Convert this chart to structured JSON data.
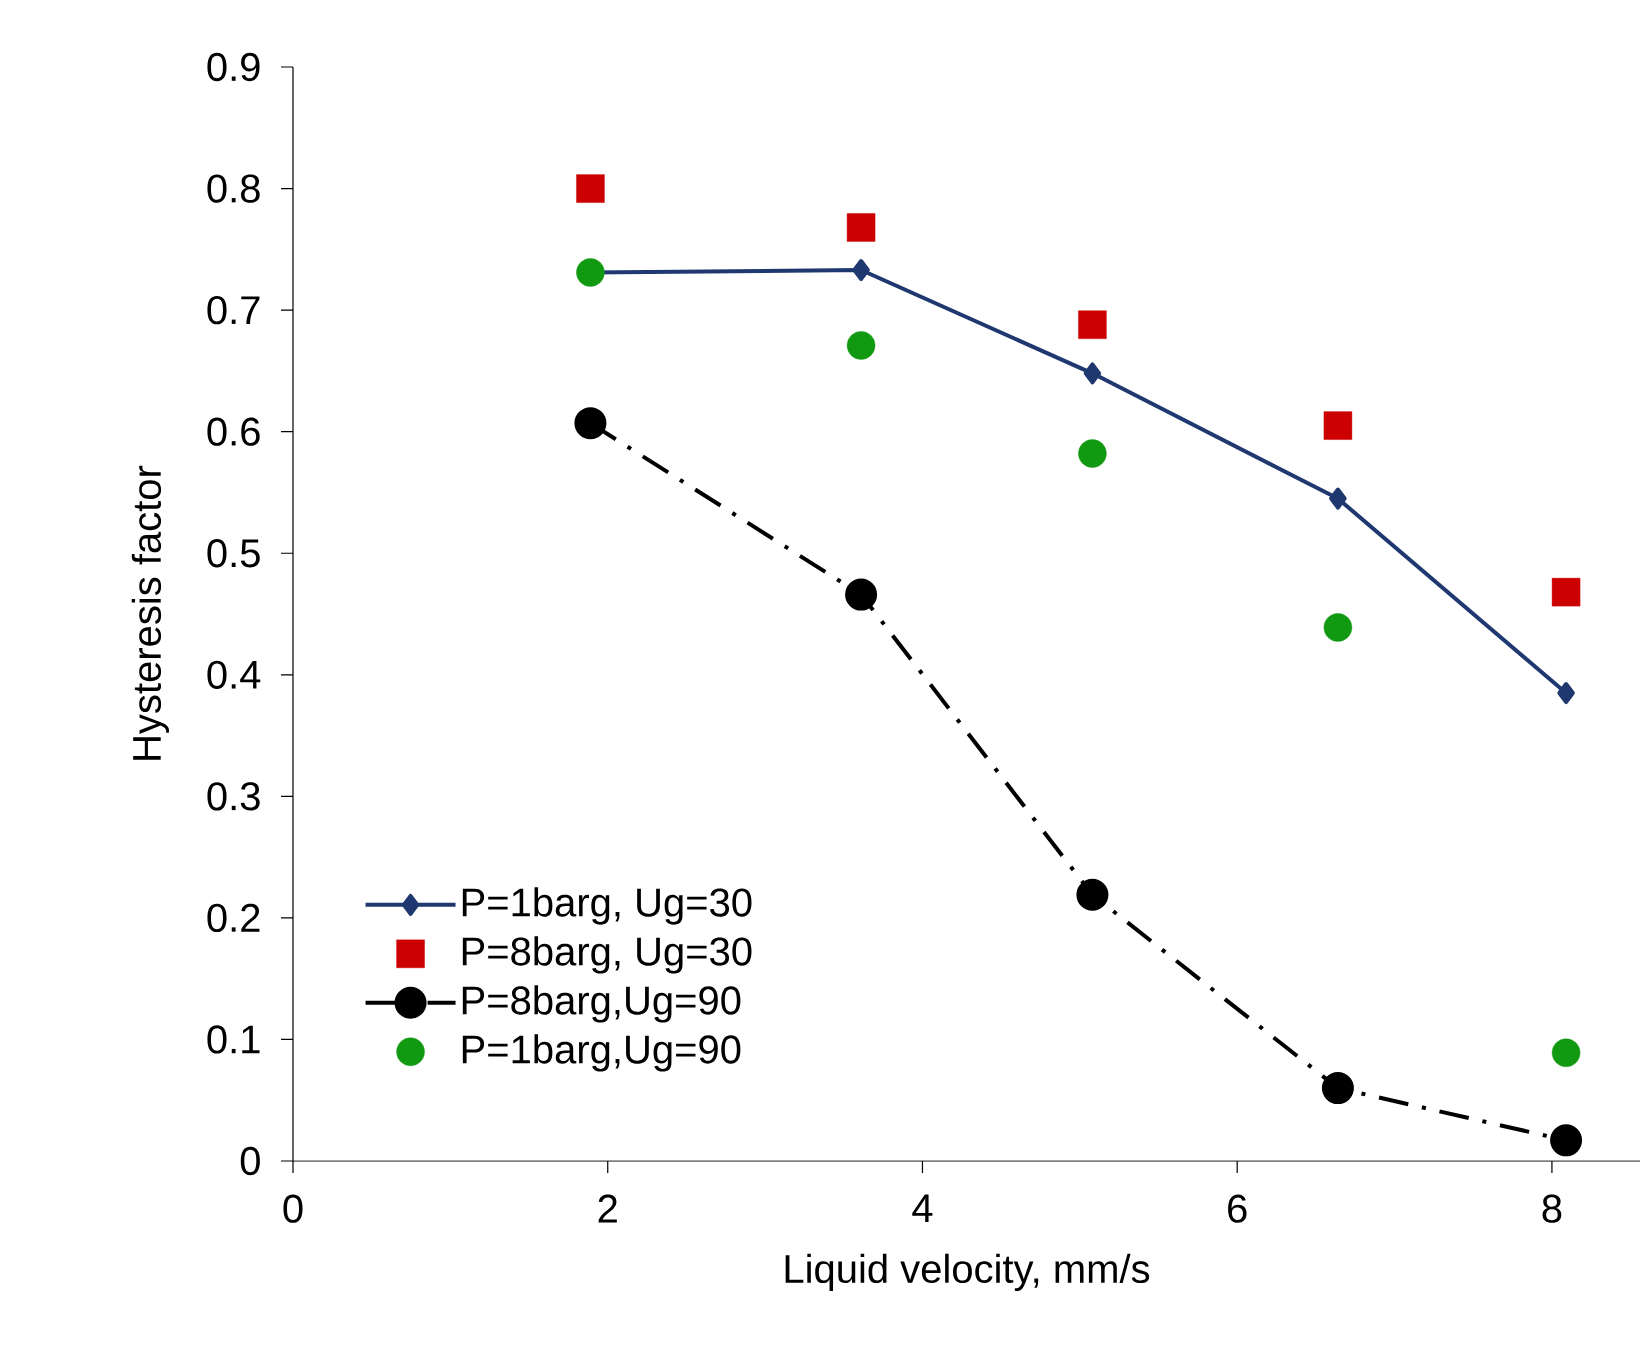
{
  "chart_data": {
    "type": "scatter",
    "xlabel": "Liquid velocity, mm/s",
    "ylabel": "Hysteresis factor",
    "xlim": [
      0,
      8.56
    ],
    "ylim": [
      0,
      0.9
    ],
    "xticks": [
      0,
      2,
      4,
      6,
      8
    ],
    "yticks": [
      0,
      0.1,
      0.2,
      0.3,
      0.4,
      0.5,
      0.6,
      0.7,
      0.8,
      0.9
    ],
    "grid": false,
    "legend": "bottom left",
    "x": [
      1.89,
      3.61,
      5.08,
      6.64,
      8.09
    ],
    "series": [
      {
        "name": "P=1barg, Ug=30",
        "type": "line",
        "color": "#1f3870",
        "marker": "diamond",
        "line_style": "solid",
        "values": [
          0.731,
          0.733,
          0.648,
          0.545,
          0.385
        ]
      },
      {
        "name": "P=8barg, Ug=30",
        "color": "#cc0000",
        "marker": "square",
        "values": [
          0.8,
          0.768,
          0.688,
          0.605,
          0.468
        ]
      },
      {
        "name": "P=8barg,Ug=90",
        "type": "line",
        "color": "#000000",
        "marker": "circle",
        "line_style": "dashdot",
        "values": [
          0.607,
          0.466,
          0.219,
          0.06,
          0.017
        ]
      },
      {
        "name": "P=1barg,Ug=90",
        "color": "#119911",
        "marker": "circle",
        "values": [
          0.731,
          0.671,
          0.582,
          0.439,
          0.089
        ]
      }
    ]
  }
}
